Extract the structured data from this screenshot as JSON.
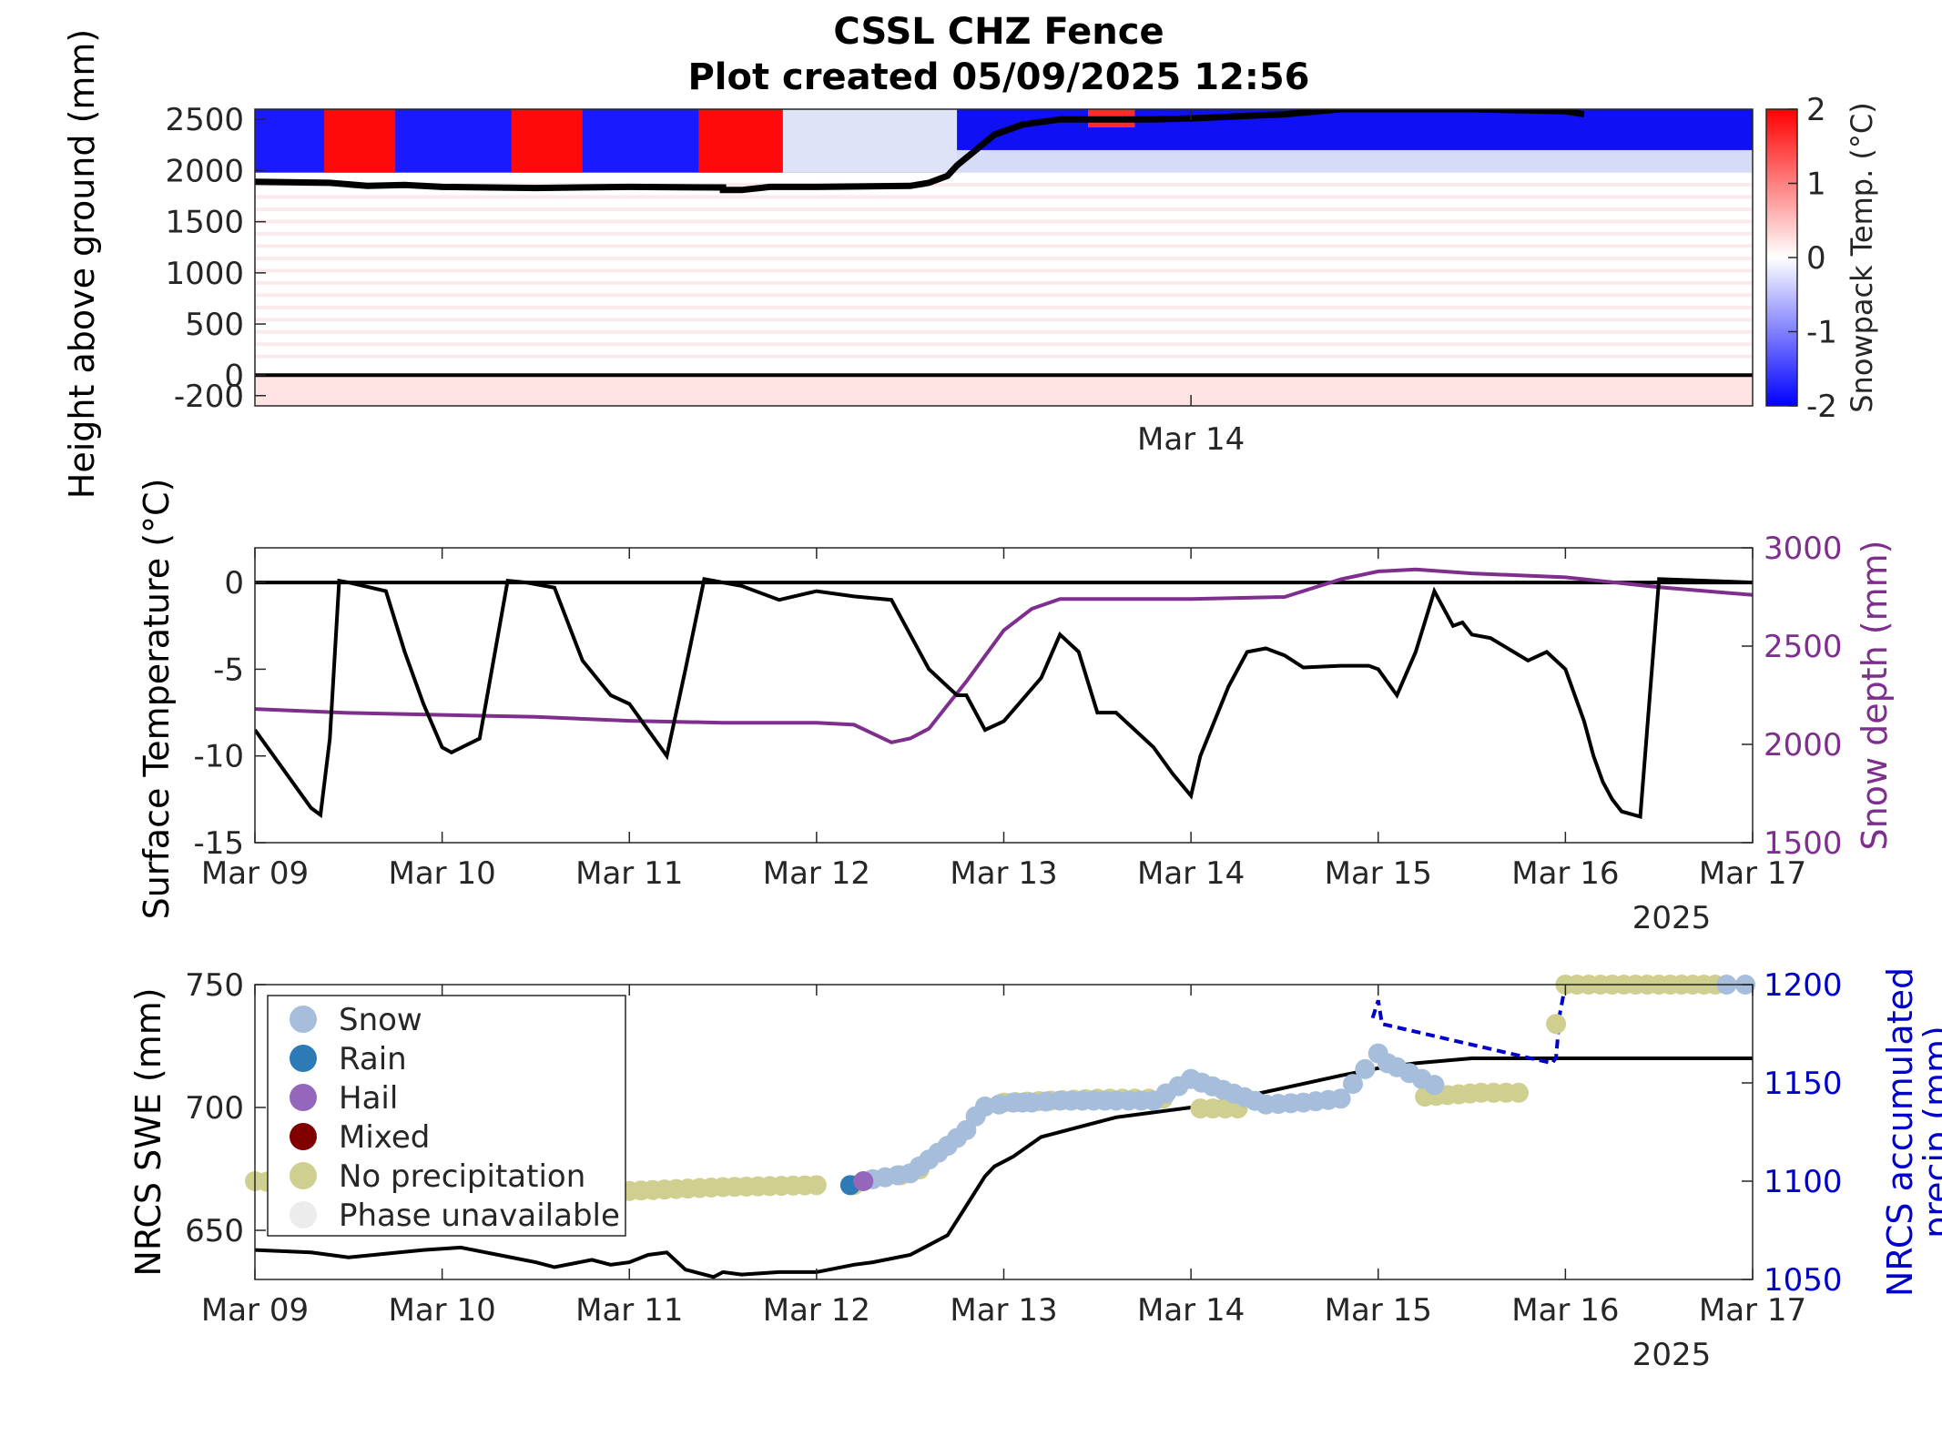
{
  "title_line1": "CSSL CHZ Fence",
  "title_line2": "Plot created 05/09/2025 12:56",
  "chart_data": [
    {
      "type": "heatmap",
      "ylabel": "Height above ground (mm)",
      "colorbar_label": "Snowpack Temp. (°C)",
      "colorbar_ticks": [
        "2",
        "1",
        "0",
        "-1",
        "-2"
      ],
      "clim": [
        -2,
        2
      ],
      "colors": {
        "cold": "#0000ff",
        "zero": "#ffffff",
        "warm": "#ff0000"
      },
      "yticks": [
        "2500",
        "2000",
        "1500",
        "1000",
        "500",
        "0",
        "-200"
      ],
      "ytick_values": [
        2500,
        2000,
        1500,
        1000,
        500,
        0,
        -200
      ],
      "ylim": [
        -300,
        2600
      ],
      "xticks": [
        "Mar 14"
      ],
      "xtick_values": [
        5
      ],
      "xlim": [
        0,
        8
      ],
      "ground_line_mm": 0,
      "snow_surface": {
        "x": [
          0,
          0.4,
          0.6,
          0.8,
          1.0,
          1.5,
          2.0,
          2.5,
          2.5,
          2.6,
          2.75,
          3.0,
          3.5,
          3.6,
          3.7,
          3.75,
          3.85,
          3.95,
          4.1,
          4.3,
          4.8,
          5.0,
          5.5,
          5.8,
          6.0,
          6.5,
          7.0,
          7.1
        ],
        "y": [
          1890,
          1880,
          1850,
          1860,
          1840,
          1830,
          1840,
          1835,
          1810,
          1810,
          1840,
          1840,
          1850,
          1880,
          1950,
          2050,
          2200,
          2350,
          2450,
          2500,
          2500,
          2510,
          2550,
          2600,
          2600,
          2600,
          2580,
          2550
        ]
      },
      "warm_bands": [
        [
          0.37,
          0.75
        ],
        [
          1.37,
          1.75
        ],
        [
          2.37,
          2.82
        ]
      ]
    },
    {
      "type": "line",
      "ylabel": "Surface Temperature (°C)",
      "y2label": "Snow depth (mm)",
      "xticks": [
        "Mar 09",
        "Mar 10",
        "Mar 11",
        "Mar 12",
        "Mar 13",
        "Mar 14",
        "Mar 15",
        "Mar 16",
        "Mar 17"
      ],
      "year_label": "2025",
      "yticks": [
        "0",
        "-5",
        "-10",
        "-15"
      ],
      "ytick_values": [
        0,
        -5,
        -10,
        -15
      ],
      "ylim": [
        -15,
        2
      ],
      "y2ticks": [
        "3000",
        "2500",
        "2000",
        "1500"
      ],
      "y2tick_values": [
        3000,
        2500,
        2000,
        1500
      ],
      "y2lim": [
        1500,
        3000
      ],
      "colors": {
        "temperature": "#000000",
        "snow_depth": "#7e2f8e",
        "zero_line": "#000000"
      },
      "series": [
        {
          "axis": "left",
          "x": [
            0,
            0.1,
            0.2,
            0.3,
            0.35,
            0.4,
            0.45,
            0.5,
            0.7,
            0.8,
            0.9,
            1.0,
            1.05,
            1.2,
            1.35,
            1.45,
            1.6,
            1.75,
            1.9,
            2.0,
            2.1,
            2.2,
            2.3,
            2.4,
            2.5,
            2.6,
            2.8,
            3.0,
            3.2,
            3.4,
            3.6,
            3.7,
            3.75,
            3.8,
            3.9,
            4.0,
            4.2,
            4.3,
            4.4,
            4.5,
            4.6,
            4.7,
            4.8,
            4.9,
            5.0,
            5.05,
            5.2,
            5.3,
            5.4,
            5.5,
            5.6,
            5.8,
            5.95,
            6.0,
            6.1,
            6.2,
            6.3,
            6.4,
            6.45,
            6.5,
            6.6,
            6.8,
            6.9,
            7.0,
            7.1,
            7.15,
            7.2,
            7.25,
            7.3,
            7.4,
            7.5,
            8.0
          ],
          "y": [
            -8.5,
            -10,
            -11.5,
            -13,
            -13.4,
            -9,
            0.1,
            0,
            -0.5,
            -4,
            -7,
            -9.5,
            -9.8,
            -9,
            0.1,
            0,
            -0.3,
            -4.5,
            -6.5,
            -7,
            -8.5,
            -10,
            -5,
            0.2,
            0,
            -0.2,
            -1,
            -0.5,
            -0.8,
            -1,
            -5,
            -6,
            -6.5,
            -6.5,
            -8.5,
            -8,
            -5.5,
            -3,
            -4,
            -7.5,
            -7.5,
            -8.5,
            -9.5,
            -11,
            -12.3,
            -10,
            -6,
            -4,
            -3.8,
            -4.2,
            -4.9,
            -4.8,
            -4.8,
            -5,
            -6.5,
            -4,
            -0.5,
            -2.5,
            -2.3,
            -3,
            -3.2,
            -4.5,
            -4,
            -5,
            -8,
            -10,
            -11.5,
            -12.5,
            -13.2,
            -13.5,
            0.2,
            0
          ]
        },
        {
          "axis": "right",
          "x": [
            0,
            0.5,
            1.0,
            1.5,
            2.0,
            2.5,
            3.0,
            3.2,
            3.4,
            3.5,
            3.6,
            3.7,
            3.8,
            3.9,
            4.0,
            4.15,
            4.3,
            4.5,
            5.0,
            5.5,
            5.8,
            6.0,
            6.2,
            6.5,
            7.0,
            7.5,
            8.0
          ],
          "y": [
            2180,
            2160,
            2150,
            2140,
            2120,
            2110,
            2110,
            2100,
            2010,
            2030,
            2080,
            2200,
            2320,
            2450,
            2580,
            2690,
            2740,
            2740,
            2740,
            2750,
            2840,
            2880,
            2890,
            2870,
            2850,
            2800,
            2760
          ]
        }
      ]
    },
    {
      "type": "scatter",
      "ylabel": "NRCS SWE (mm)",
      "y2label_line1": "NRCS accumulated",
      "y2label_line2": "precip (mm)",
      "xticks": [
        "Mar 09",
        "Mar 10",
        "Mar 11",
        "Mar 12",
        "Mar 13",
        "Mar 14",
        "Mar 15",
        "Mar 16",
        "Mar 17"
      ],
      "year_label": "2025",
      "yticks": [
        "750",
        "700",
        "650"
      ],
      "ytick_values": [
        750,
        700,
        650
      ],
      "ylim": [
        630,
        750
      ],
      "y2ticks": [
        "1200",
        "1150",
        "1100",
        "1050"
      ],
      "y2tick_values": [
        1200,
        1150,
        1100,
        1050
      ],
      "y2lim": [
        1050,
        1200
      ],
      "legend": [
        {
          "label": "Snow",
          "color": "#a6bddb"
        },
        {
          "label": "Rain",
          "color": "#2c7bb6"
        },
        {
          "label": "Hail",
          "color": "#9467bd"
        },
        {
          "label": "Mixed",
          "color": "#800000"
        },
        {
          "label": "No precipitation",
          "color": "#cfcf8f"
        },
        {
          "label": "Phase unavailable",
          "color": "#ececec"
        }
      ],
      "legend_location": "upper-left",
      "colors": {
        "swe_line": "#000000",
        "precip_line": "#0000cc"
      },
      "swe_line": {
        "x": [
          0,
          0.3,
          0.5,
          0.9,
          1.1,
          1.3,
          1.5,
          1.6,
          1.8,
          1.9,
          2.0,
          2.1,
          2.2,
          2.3,
          2.4,
          2.45,
          2.5,
          2.6,
          2.8,
          3.0,
          3.2,
          3.3,
          3.5,
          3.6,
          3.7,
          3.8,
          3.9,
          3.95,
          4.05,
          4.2,
          4.4,
          4.6,
          4.8,
          4.9,
          5.0,
          5.2,
          5.5,
          5.8,
          6.0,
          6.2,
          6.5,
          6.8,
          7.0,
          7.2,
          7.5,
          8.0
        ],
        "y": [
          642,
          641,
          639,
          642,
          643,
          640,
          637,
          635,
          638,
          636,
          637,
          640,
          641,
          634,
          632,
          631,
          633,
          632,
          633,
          633,
          636,
          637,
          640,
          644,
          648,
          660,
          672,
          676,
          680,
          688,
          692,
          696,
          698,
          699,
          700,
          703,
          708,
          713,
          716,
          718,
          720,
          720,
          720,
          720,
          720,
          720
        ]
      },
      "precip_line": {
        "x": [
          5.97,
          6.0,
          6.02,
          6.93,
          6.95,
          6.97,
          7.0,
          8.0
        ],
        "y": [
          1183,
          1192,
          1180,
          1160,
          1163,
          1185,
          1200,
          1200
        ]
      },
      "points": {
        "no_precip": [
          [
            0,
            1100
          ],
          [
            0.5,
            1098
          ],
          [
            1.0,
            1097
          ],
          [
            1.5,
            1096
          ],
          [
            2.0,
            1095
          ],
          [
            2.5,
            1097
          ],
          [
            3.0,
            1098
          ],
          [
            3.2,
            1098
          ],
          [
            3.45,
            1103
          ],
          [
            3.55,
            1106
          ],
          [
            4.0,
            1140
          ],
          [
            4.5,
            1142
          ],
          [
            4.7,
            1142
          ],
          [
            4.85,
            1142
          ],
          [
            5.05,
            1137
          ],
          [
            5.25,
            1137
          ],
          [
            6.25,
            1143
          ],
          [
            6.55,
            1145
          ],
          [
            6.75,
            1145
          ],
          [
            6.95,
            1180
          ],
          [
            7.0,
            1200
          ],
          [
            7.5,
            1200
          ],
          [
            7.8,
            1200
          ]
        ],
        "snow": [
          [
            3.3,
            1101
          ],
          [
            3.5,
            1104
          ],
          [
            3.6,
            1111
          ],
          [
            3.7,
            1118
          ],
          [
            3.8,
            1126
          ],
          [
            3.85,
            1133
          ],
          [
            3.9,
            1138
          ],
          [
            4.05,
            1140
          ],
          [
            4.15,
            1140
          ],
          [
            4.3,
            1141
          ],
          [
            4.6,
            1141
          ],
          [
            4.8,
            1141
          ],
          [
            5.0,
            1152
          ],
          [
            5.4,
            1139
          ],
          [
            5.6,
            1140
          ],
          [
            5.8,
            1142
          ],
          [
            5.93,
            1157
          ],
          [
            6.0,
            1165
          ],
          [
            6.05,
            1160
          ],
          [
            6.1,
            1158
          ],
          [
            6.3,
            1149
          ],
          [
            8.0,
            1200
          ]
        ],
        "rain": [
          [
            3.18,
            1098
          ]
        ],
        "hail": [
          [
            3.25,
            1100
          ]
        ]
      }
    }
  ]
}
